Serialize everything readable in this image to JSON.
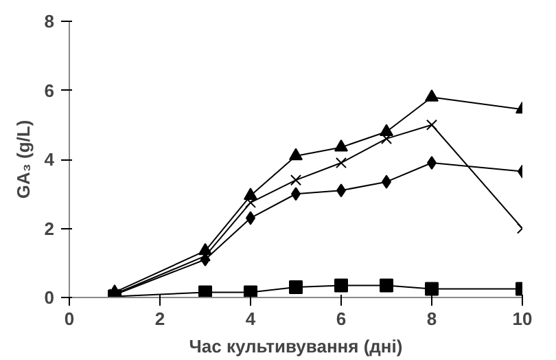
{
  "chart_data": {
    "type": "line",
    "xlabel": "Час культивування (дні)",
    "ylabel": "GA₃ (g/L)",
    "x": [
      1,
      3,
      4,
      5,
      6,
      7,
      8,
      10
    ],
    "series": [
      {
        "color": "#000000",
        "marker": "triangle",
        "values": [
          0.15,
          1.35,
          2.95,
          4.1,
          4.35,
          4.8,
          5.8,
          5.45
        ]
      },
      {
        "color": "#000000",
        "marker": "cross",
        "values": [
          0.1,
          1.2,
          2.75,
          3.4,
          3.9,
          4.6,
          5.0,
          2.0
        ]
      },
      {
        "color": "#000000",
        "marker": "diamond",
        "values": [
          0.08,
          1.1,
          2.3,
          3.0,
          3.1,
          3.35,
          3.9,
          3.65
        ]
      },
      {
        "color": "#000000",
        "marker": "square",
        "values": [
          0.03,
          0.15,
          0.15,
          0.3,
          0.35,
          0.35,
          0.25,
          0.25
        ]
      }
    ],
    "xlim": [
      0,
      10
    ],
    "xticks": [
      0,
      2,
      4,
      6,
      8,
      10
    ],
    "ylim": [
      0,
      8
    ],
    "yticks": [
      0,
      2,
      4,
      6,
      8
    ],
    "grid": false,
    "line_style": "solid"
  }
}
